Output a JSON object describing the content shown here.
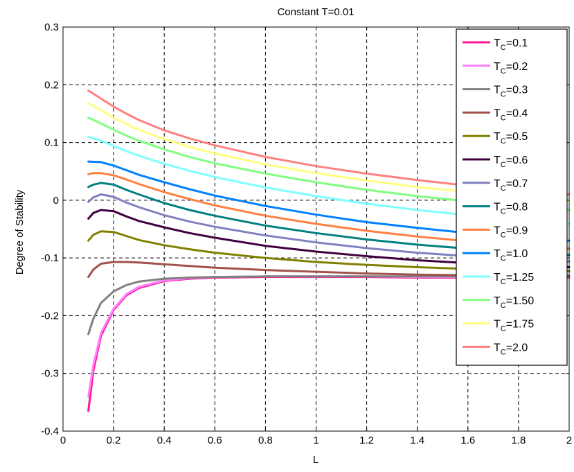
{
  "chart_data": {
    "type": "line",
    "title": "Constant T=0.01",
    "xlabel": "L",
    "ylabel": "Degree of Stability",
    "xlim": [
      0,
      2
    ],
    "ylim": [
      -0.4,
      0.3
    ],
    "xticks": [
      0,
      0.2,
      0.4,
      0.6,
      0.8,
      1,
      1.2,
      1.4,
      1.6,
      1.8,
      2
    ],
    "xtick_labels": [
      "0",
      "0.2",
      "0.4",
      "0.6",
      "0.8",
      "1",
      "1.2",
      "1.4",
      "1.6",
      "1.8",
      "2"
    ],
    "yticks": [
      -0.4,
      -0.3,
      -0.2,
      -0.1,
      0,
      0.1,
      0.2,
      0.3
    ],
    "ytick_labels": [
      "-0.4",
      "-0.3",
      "-0.2",
      "-0.1",
      "0",
      "0.1",
      "0.2",
      "0.3"
    ],
    "grid": true,
    "legend_position": "top-right",
    "series": [
      {
        "name": "T_C=0.1",
        "base": "T",
        "sub": "C",
        "suffix": "=0.1",
        "color": "#ff1493",
        "x": [
          0.1,
          0.12,
          0.15,
          0.2,
          0.25,
          0.3,
          0.4,
          0.5,
          0.6,
          0.8,
          1.0,
          1.2,
          1.4,
          1.6,
          1.8,
          2.0
        ],
        "y": [
          -0.365,
          -0.295,
          -0.235,
          -0.19,
          -0.165,
          -0.152,
          -0.14,
          -0.136,
          -0.134,
          -0.133,
          -0.133,
          -0.133,
          -0.134,
          -0.134,
          -0.134,
          -0.134
        ]
      },
      {
        "name": "T_C=0.2",
        "base": "T",
        "sub": "C",
        "suffix": "=0.2",
        "color": "#ff80ff",
        "x": [
          0.1,
          0.12,
          0.15,
          0.2,
          0.25,
          0.3,
          0.4,
          0.5,
          0.6,
          0.8,
          1.0,
          1.2,
          1.4,
          1.6,
          1.8,
          2.0
        ],
        "y": [
          -0.34,
          -0.285,
          -0.23,
          -0.188,
          -0.163,
          -0.15,
          -0.139,
          -0.135,
          -0.133,
          -0.132,
          -0.132,
          -0.132,
          -0.133,
          -0.133,
          -0.133,
          -0.133
        ]
      },
      {
        "name": "T_C=0.3",
        "base": "T",
        "sub": "C",
        "suffix": "=0.3",
        "color": "#808080",
        "x": [
          0.1,
          0.12,
          0.15,
          0.2,
          0.25,
          0.3,
          0.4,
          0.5,
          0.6,
          0.8,
          1.0,
          1.2,
          1.4,
          1.6,
          1.8,
          2.0
        ],
        "y": [
          -0.232,
          -0.205,
          -0.178,
          -0.158,
          -0.147,
          -0.141,
          -0.136,
          -0.134,
          -0.133,
          -0.132,
          -0.132,
          -0.132,
          -0.132,
          -0.132,
          -0.132,
          -0.132
        ]
      },
      {
        "name": "T_C=0.4",
        "base": "T",
        "sub": "C",
        "suffix": "=0.4",
        "color": "#a0524b",
        "x": [
          0.1,
          0.12,
          0.15,
          0.2,
          0.25,
          0.3,
          0.4,
          0.5,
          0.6,
          0.8,
          1.0,
          1.2,
          1.4,
          1.6,
          1.8,
          2.0
        ],
        "y": [
          -0.133,
          -0.12,
          -0.11,
          -0.107,
          -0.107,
          -0.108,
          -0.111,
          -0.114,
          -0.117,
          -0.121,
          -0.124,
          -0.127,
          -0.129,
          -0.13,
          -0.13,
          -0.131
        ]
      },
      {
        "name": "T_C=0.5",
        "base": "T",
        "sub": "C",
        "suffix": "=0.5",
        "color": "#808000",
        "x": [
          0.1,
          0.12,
          0.15,
          0.2,
          0.25,
          0.3,
          0.4,
          0.5,
          0.6,
          0.8,
          1.0,
          1.2,
          1.4,
          1.6,
          1.8,
          2.0
        ],
        "y": [
          -0.07,
          -0.06,
          -0.054,
          -0.055,
          -0.062,
          -0.069,
          -0.078,
          -0.085,
          -0.091,
          -0.1,
          -0.107,
          -0.112,
          -0.116,
          -0.119,
          -0.121,
          -0.123
        ]
      },
      {
        "name": "T_C=0.6",
        "base": "T",
        "sub": "C",
        "suffix": "=0.6",
        "color": "#400040",
        "x": [
          0.1,
          0.12,
          0.15,
          0.2,
          0.25,
          0.3,
          0.4,
          0.5,
          0.6,
          0.8,
          1.0,
          1.2,
          1.4,
          1.6,
          1.8,
          2.0
        ],
        "y": [
          -0.032,
          -0.022,
          -0.017,
          -0.019,
          -0.028,
          -0.036,
          -0.047,
          -0.057,
          -0.065,
          -0.079,
          -0.089,
          -0.097,
          -0.104,
          -0.109,
          -0.113,
          -0.116
        ]
      },
      {
        "name": "T_C=0.7",
        "base": "T",
        "sub": "C",
        "suffix": "=0.7",
        "color": "#8080c0",
        "x": [
          0.1,
          0.12,
          0.15,
          0.2,
          0.25,
          0.3,
          0.4,
          0.5,
          0.6,
          0.8,
          1.0,
          1.2,
          1.4,
          1.6,
          1.8,
          2.0
        ],
        "y": [
          -0.003,
          0.005,
          0.01,
          0.006,
          -0.004,
          -0.012,
          -0.026,
          -0.037,
          -0.046,
          -0.061,
          -0.073,
          -0.083,
          -0.091,
          -0.097,
          -0.102,
          -0.106
        ]
      },
      {
        "name": "T_C=0.8",
        "base": "T",
        "sub": "C",
        "suffix": "=0.8",
        "color": "#008080",
        "x": [
          0.1,
          0.12,
          0.15,
          0.2,
          0.25,
          0.3,
          0.4,
          0.5,
          0.6,
          0.8,
          1.0,
          1.2,
          1.4,
          1.6,
          1.8,
          2.0
        ],
        "y": [
          0.023,
          0.027,
          0.03,
          0.027,
          0.018,
          0.01,
          -0.005,
          -0.017,
          -0.027,
          -0.044,
          -0.057,
          -0.068,
          -0.077,
          -0.084,
          -0.09,
          -0.095
        ]
      },
      {
        "name": "T_C=0.9",
        "base": "T",
        "sub": "C",
        "suffix": "=0.9",
        "color": "#ff8040",
        "x": [
          0.1,
          0.12,
          0.15,
          0.2,
          0.25,
          0.3,
          0.4,
          0.5,
          0.6,
          0.8,
          1.0,
          1.2,
          1.4,
          1.6,
          1.8,
          2.0
        ],
        "y": [
          0.045,
          0.047,
          0.047,
          0.043,
          0.036,
          0.028,
          0.014,
          0.002,
          -0.009,
          -0.027,
          -0.041,
          -0.053,
          -0.063,
          -0.071,
          -0.078,
          -0.084
        ]
      },
      {
        "name": "T_C=1.0",
        "base": "T",
        "sub": "C",
        "suffix": "=1.0",
        "color": "#0080ff",
        "x": [
          0.1,
          0.15,
          0.2,
          0.25,
          0.3,
          0.4,
          0.5,
          0.6,
          0.8,
          1.0,
          1.2,
          1.4,
          1.6,
          1.8,
          2.0
        ],
        "y": [
          0.067,
          0.066,
          0.06,
          0.052,
          0.044,
          0.031,
          0.019,
          0.008,
          -0.01,
          -0.025,
          -0.038,
          -0.048,
          -0.057,
          -0.064,
          -0.07
        ]
      },
      {
        "name": "T_C=1.25",
        "base": "T",
        "sub": "C",
        "suffix": "=1.25",
        "color": "#80ffff",
        "x": [
          0.1,
          0.15,
          0.2,
          0.25,
          0.3,
          0.4,
          0.5,
          0.6,
          0.8,
          1.0,
          1.2,
          1.4,
          1.6,
          1.8,
          2.0
        ],
        "y": [
          0.11,
          0.103,
          0.094,
          0.085,
          0.077,
          0.063,
          0.051,
          0.04,
          0.022,
          0.007,
          -0.006,
          -0.017,
          -0.026,
          -0.034,
          -0.041
        ]
      },
      {
        "name": "T_C=1.50",
        "base": "T",
        "sub": "C",
        "suffix": "=1.50",
        "color": "#80ff80",
        "x": [
          0.1,
          0.15,
          0.2,
          0.25,
          0.3,
          0.4,
          0.5,
          0.6,
          0.8,
          1.0,
          1.2,
          1.4,
          1.6,
          1.8,
          2.0
        ],
        "y": [
          0.143,
          0.133,
          0.122,
          0.112,
          0.103,
          0.088,
          0.075,
          0.064,
          0.046,
          0.031,
          0.018,
          0.007,
          -0.002,
          -0.01,
          -0.017
        ]
      },
      {
        "name": "T_C=1.75",
        "base": "T",
        "sub": "C",
        "suffix": "=1.75",
        "color": "#ffff80",
        "x": [
          0.1,
          0.15,
          0.2,
          0.25,
          0.3,
          0.4,
          0.5,
          0.6,
          0.8,
          1.0,
          1.2,
          1.4,
          1.6,
          1.8,
          2.0
        ],
        "y": [
          0.168,
          0.156,
          0.143,
          0.132,
          0.122,
          0.106,
          0.092,
          0.081,
          0.062,
          0.047,
          0.034,
          0.023,
          0.014,
          0.006,
          -0.001
        ]
      },
      {
        "name": "T_C=2.0",
        "base": "T",
        "sub": "C",
        "suffix": "=2.0",
        "color": "#ff8080",
        "x": [
          0.1,
          0.15,
          0.2,
          0.25,
          0.3,
          0.4,
          0.5,
          0.6,
          0.8,
          1.0,
          1.2,
          1.4,
          1.6,
          1.8,
          2.0
        ],
        "y": [
          0.19,
          0.176,
          0.162,
          0.15,
          0.139,
          0.121,
          0.107,
          0.095,
          0.075,
          0.059,
          0.046,
          0.035,
          0.025,
          0.017,
          0.01
        ]
      }
    ]
  }
}
